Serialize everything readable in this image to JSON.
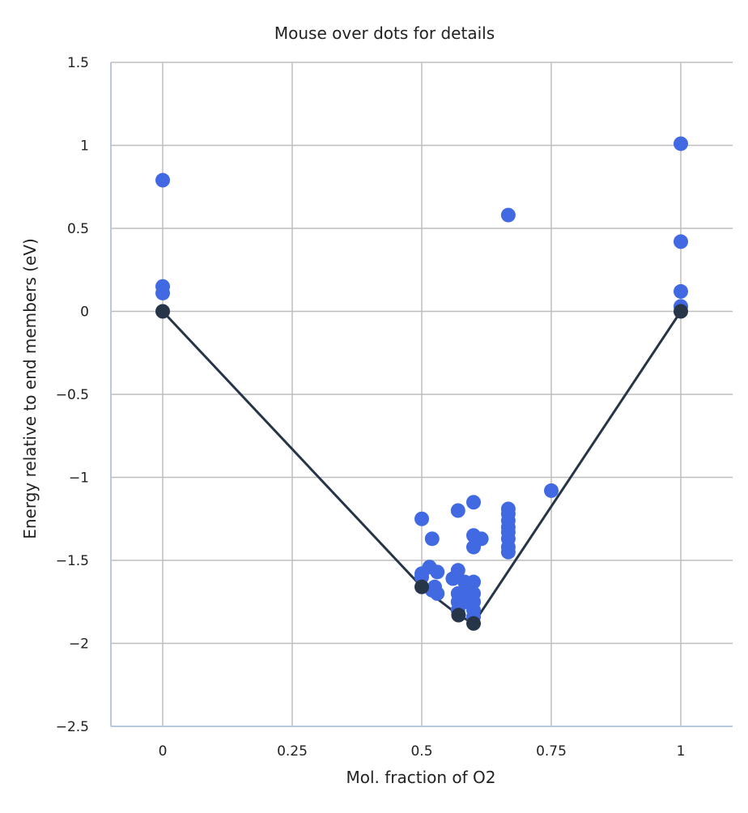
{
  "chart_data": {
    "type": "scatter",
    "title": "Mouse over dots for details",
    "xlabel": "Mol. fraction of O2",
    "ylabel": "Energy relative to end members (eV)",
    "xlim": [
      -0.1,
      1.1
    ],
    "ylim": [
      -2.5,
      1.5
    ],
    "xticks": [
      0,
      0.25,
      0.5,
      0.75,
      1
    ],
    "xtick_labels": [
      "0",
      "0.25",
      "0.5",
      "0.75",
      "1"
    ],
    "yticks": [
      1.5,
      1,
      0.5,
      0,
      -0.5,
      -1,
      -1.5,
      -2,
      -2.5
    ],
    "ytick_labels": [
      "1.5",
      "1",
      "0.5",
      "0",
      "−0.5",
      "−1",
      "−1.5",
      "−2",
      "−2.5"
    ],
    "grid": true,
    "colors": {
      "unstable": "#4169e1",
      "stable": "#263548",
      "hull": "#263548",
      "grid": "#bdbdbd",
      "axis": "#b8c8e0"
    },
    "unstable_points": [
      [
        0,
        0.79
      ],
      [
        0,
        0.15
      ],
      [
        0,
        0.11
      ],
      [
        1,
        1.01
      ],
      [
        1,
        0.42
      ],
      [
        1,
        0.12
      ],
      [
        1,
        0.03
      ],
      [
        0.667,
        0.58
      ],
      [
        0.75,
        -1.08
      ],
      [
        0.5,
        -1.25
      ],
      [
        0.5,
        -1.58
      ],
      [
        0.5,
        -1.6
      ],
      [
        0.52,
        -1.37
      ],
      [
        0.515,
        -1.54
      ],
      [
        0.53,
        -1.57
      ],
      [
        0.525,
        -1.66
      ],
      [
        0.53,
        -1.7
      ],
      [
        0.52,
        -1.68
      ],
      [
        0.57,
        -1.2
      ],
      [
        0.57,
        -1.56
      ],
      [
        0.56,
        -1.61
      ],
      [
        0.57,
        -1.7
      ],
      [
        0.57,
        -1.75
      ],
      [
        0.57,
        -1.8
      ],
      [
        0.583,
        -1.63
      ],
      [
        0.583,
        -1.68
      ],
      [
        0.583,
        -1.75
      ],
      [
        0.6,
        -1.15
      ],
      [
        0.6,
        -1.35
      ],
      [
        0.6,
        -1.42
      ],
      [
        0.615,
        -1.37
      ],
      [
        0.6,
        -1.63
      ],
      [
        0.6,
        -1.7
      ],
      [
        0.6,
        -1.75
      ],
      [
        0.6,
        -1.8
      ],
      [
        0.6,
        -1.84
      ],
      [
        0.667,
        -1.19
      ],
      [
        0.667,
        -1.22
      ],
      [
        0.667,
        -1.26
      ],
      [
        0.667,
        -1.3
      ],
      [
        0.667,
        -1.33
      ],
      [
        0.667,
        -1.37
      ],
      [
        0.667,
        -1.42
      ],
      [
        0.667,
        -1.45
      ]
    ],
    "stable_points": [
      [
        0,
        0
      ],
      [
        0.5,
        -1.66
      ],
      [
        0.571,
        -1.83
      ],
      [
        0.6,
        -1.88
      ],
      [
        1,
        0
      ]
    ]
  }
}
